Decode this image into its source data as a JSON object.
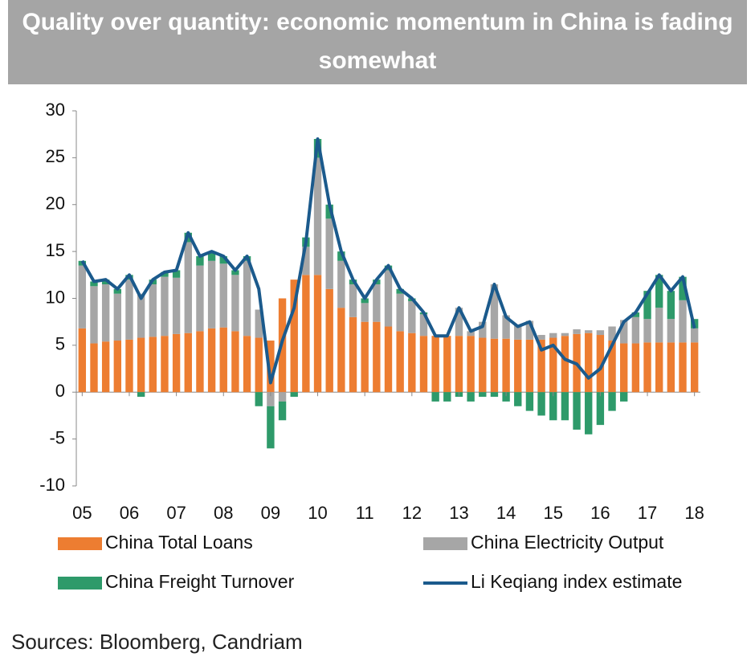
{
  "chart_data": {
    "type": "bar",
    "title": "Quality over quantity: economic momentum in China is fading somewhat",
    "source": "Sources: Bloomberg, Candriam",
    "categories": [
      "05",
      null,
      null,
      null,
      "06",
      null,
      null,
      null,
      "07",
      null,
      null,
      null,
      "08",
      null,
      null,
      null,
      "09",
      null,
      null,
      null,
      "10",
      null,
      null,
      null,
      "11",
      null,
      null,
      null,
      "12",
      null,
      null,
      null,
      "13",
      null,
      null,
      null,
      "14",
      null,
      null,
      null,
      "15",
      null,
      null,
      null,
      "16",
      null,
      null,
      null,
      "17",
      null,
      null,
      null,
      "18"
    ],
    "ylim": [
      -10,
      30
    ],
    "yticks": [
      -10,
      -5,
      0,
      5,
      10,
      15,
      20,
      25,
      30
    ],
    "stacked": true,
    "series": [
      {
        "name": "China Total Loans",
        "type": "bar",
        "color": "#ED7D31",
        "values": [
          6.8,
          5.2,
          5.4,
          5.5,
          5.6,
          5.8,
          5.9,
          6.0,
          6.2,
          6.3,
          6.5,
          6.8,
          6.9,
          6.5,
          6.0,
          5.8,
          5.5,
          10,
          12,
          12.5,
          12.5,
          11,
          9,
          8,
          7.5,
          7.5,
          7.0,
          6.5,
          6.3,
          6.0,
          6.0,
          6.0,
          6.0,
          6.0,
          5.8,
          5.7,
          5.7,
          5.6,
          5.6,
          5.6,
          5.8,
          6.0,
          6.2,
          6.3,
          6.1,
          5.5,
          5.2,
          5.2,
          5.3,
          5.3,
          5.3,
          5.3,
          5.3
        ]
      },
      {
        "name": "China Electricity Output",
        "type": "bar",
        "color": "#A6A6A6",
        "values": [
          6.7,
          6.1,
          6.1,
          5.0,
          6.4,
          4.7,
          5.6,
          6.3,
          6.0,
          9.7,
          7.0,
          7.2,
          6.8,
          6.0,
          8.0,
          3.0,
          -1.5,
          -1.0,
          0,
          3.0,
          12.5,
          7.5,
          5.0,
          3.5,
          2.0,
          4.0,
          6.0,
          4.0,
          3.4,
          2.3,
          0,
          0,
          3.0,
          0.5,
          1.7,
          5.8,
          2.5,
          1.5,
          2.0,
          0.5,
          0.5,
          0.3,
          0.5,
          0.3,
          0.5,
          1.5,
          2.5,
          2.8,
          2.5,
          3.7,
          2.5,
          4.5,
          1.5
        ]
      },
      {
        "name": "China Freight Turnover",
        "type": "bar",
        "color": "#2E9A6A",
        "values": [
          0.5,
          0.5,
          0.5,
          0.5,
          0.5,
          -0.5,
          0.5,
          0.5,
          0.8,
          1.0,
          1.0,
          1.0,
          0.8,
          0.5,
          0.5,
          -1.5,
          -4.5,
          -2.0,
          -0.5,
          1.0,
          2.0,
          1.5,
          1.0,
          0.5,
          0.5,
          0.5,
          0.5,
          0.5,
          0.3,
          0.2,
          -1.0,
          -1.0,
          -0.5,
          -1.0,
          -0.5,
          -0.5,
          -1.0,
          -1.5,
          -2.0,
          -2.5,
          -3.0,
          -3.0,
          -4.0,
          -4.5,
          -3.5,
          -2.0,
          -1.0,
          0.5,
          3.0,
          3.5,
          3.0,
          2.5,
          1.0
        ]
      },
      {
        "name": "Li Keqiang index estimate",
        "type": "line",
        "color": "#1B5A8C",
        "values": [
          14,
          11.8,
          12,
          11,
          12.5,
          10,
          12,
          12.8,
          13,
          17,
          14.5,
          15,
          14.5,
          13,
          14.5,
          11,
          1,
          5.5,
          9,
          16,
          27,
          20,
          15,
          12,
          10,
          12,
          13.5,
          11,
          10,
          8.5,
          6,
          6,
          9,
          6.5,
          7,
          11.5,
          8,
          7,
          7.5,
          4.5,
          5,
          3.5,
          3,
          1.5,
          2.5,
          5,
          7.5,
          8.5,
          10.5,
          12.5,
          10.8,
          12.3,
          6.8
        ]
      }
    ]
  }
}
